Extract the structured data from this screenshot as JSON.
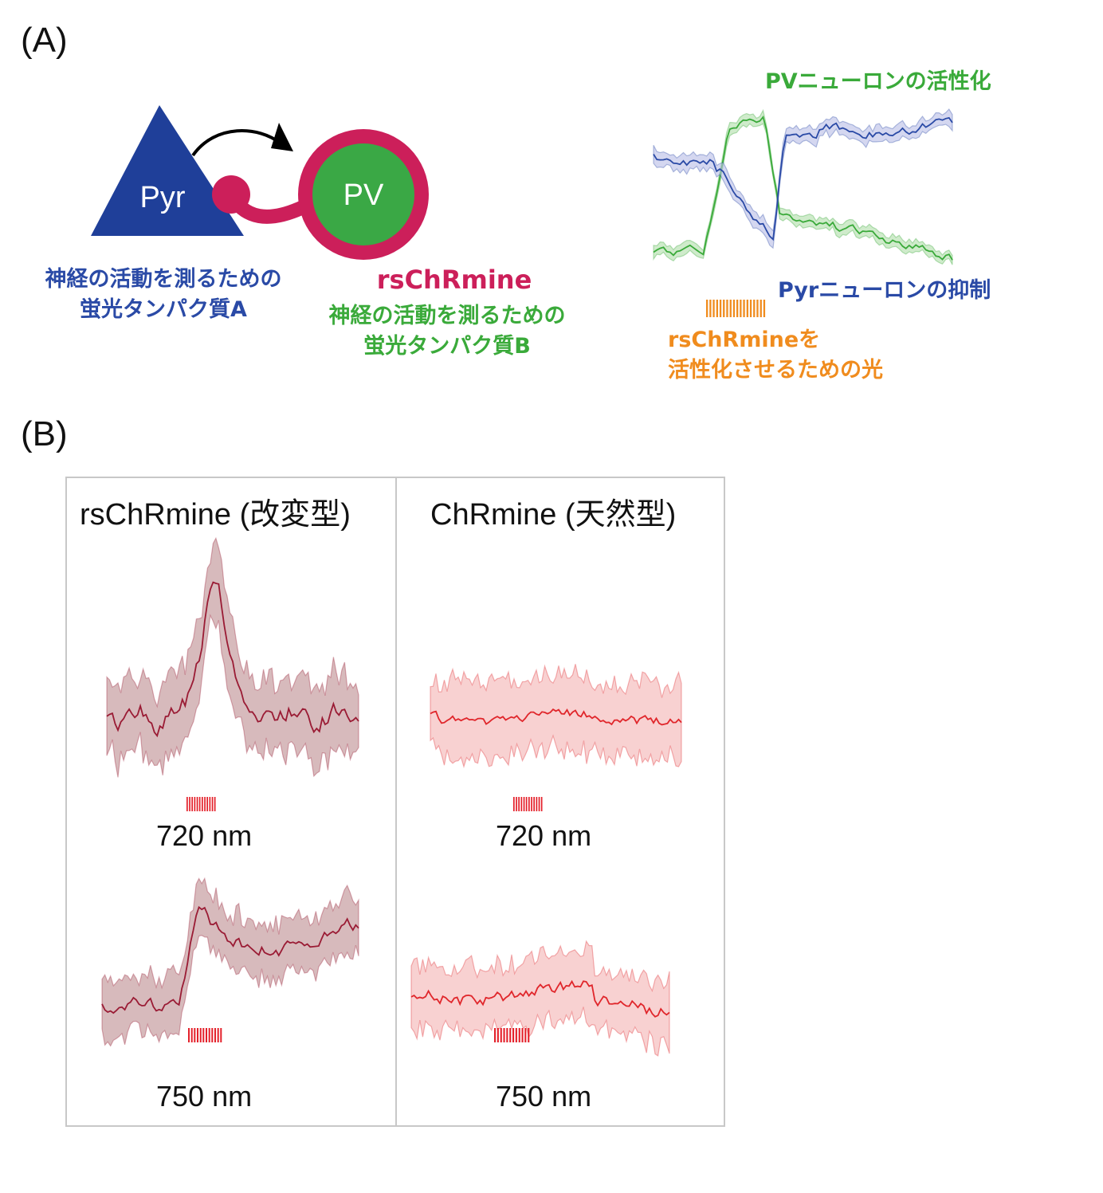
{
  "panel_a": {
    "label": "(A)",
    "pyr_label": "Pyr",
    "pv_label": "PV",
    "rschrmine_label": "rsChRmine",
    "sensor_a": [
      "神経の活動を測るための",
      "蛍光タンパク質A"
    ],
    "sensor_b": [
      "神経の活動を測るための",
      "蛍光タンパク質B"
    ],
    "pv_activation": "PVニューロンの活性化",
    "pyr_inhibition": "Pyrニューロンの抑制",
    "light_label": [
      "rsChRmineを",
      "活性化させるための光"
    ],
    "colors": {
      "pyr": "#1f3f99",
      "pv": "#3aa845",
      "rschrmine": "#cc1f5a",
      "light": "#f08c1e",
      "pyr_trace": "#2a4aa6",
      "pv_trace": "#3aaa3a"
    }
  },
  "panel_b": {
    "label": "(B)",
    "columns": [
      {
        "title": "rsChRmine (改変型)",
        "trace_color": "#9a1b34",
        "band_color": "#c9a3a6"
      },
      {
        "title": "ChRmine (天然型)",
        "trace_color": "#e0262b",
        "band_color": "#f7c9c9"
      }
    ],
    "wavelengths": [
      "720 nm",
      "750 nm"
    ],
    "stim_color": "#e4202a"
  }
}
